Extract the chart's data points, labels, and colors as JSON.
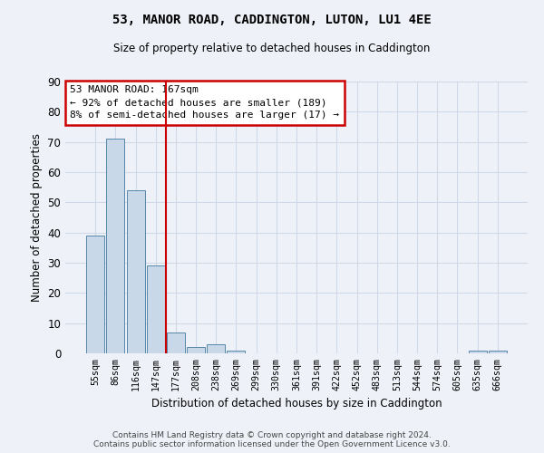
{
  "title": "53, MANOR ROAD, CADDINGTON, LUTON, LU1 4EE",
  "subtitle": "Size of property relative to detached houses in Caddington",
  "xlabel": "Distribution of detached houses by size in Caddington",
  "ylabel": "Number of detached properties",
  "categories": [
    "55sqm",
    "86sqm",
    "116sqm",
    "147sqm",
    "177sqm",
    "208sqm",
    "238sqm",
    "269sqm",
    "299sqm",
    "330sqm",
    "361sqm",
    "391sqm",
    "422sqm",
    "452sqm",
    "483sqm",
    "513sqm",
    "544sqm",
    "574sqm",
    "605sqm",
    "635sqm",
    "666sqm"
  ],
  "values": [
    39,
    71,
    54,
    29,
    7,
    2,
    3,
    1,
    0,
    0,
    0,
    0,
    0,
    0,
    0,
    0,
    0,
    0,
    0,
    1,
    1
  ],
  "bar_color": "#c8d8e8",
  "bar_edge_color": "#5588aa",
  "ylim": [
    0,
    90
  ],
  "yticks": [
    0,
    10,
    20,
    30,
    40,
    50,
    60,
    70,
    80,
    90
  ],
  "property_line_x": 3.5,
  "annotation_text_line1": "53 MANOR ROAD: 167sqm",
  "annotation_text_line2": "← 92% of detached houses are smaller (189)",
  "annotation_text_line3": "8% of semi-detached houses are larger (17) →",
  "annotation_box_color": "#ffffff",
  "annotation_border_color": "#cc0000",
  "vline_color": "#cc0000",
  "grid_color": "#d0d8e8",
  "background_color": "#eef2f8",
  "footer_line1": "Contains HM Land Registry data © Crown copyright and database right 2024.",
  "footer_line2": "Contains public sector information licensed under the Open Government Licence v3.0."
}
